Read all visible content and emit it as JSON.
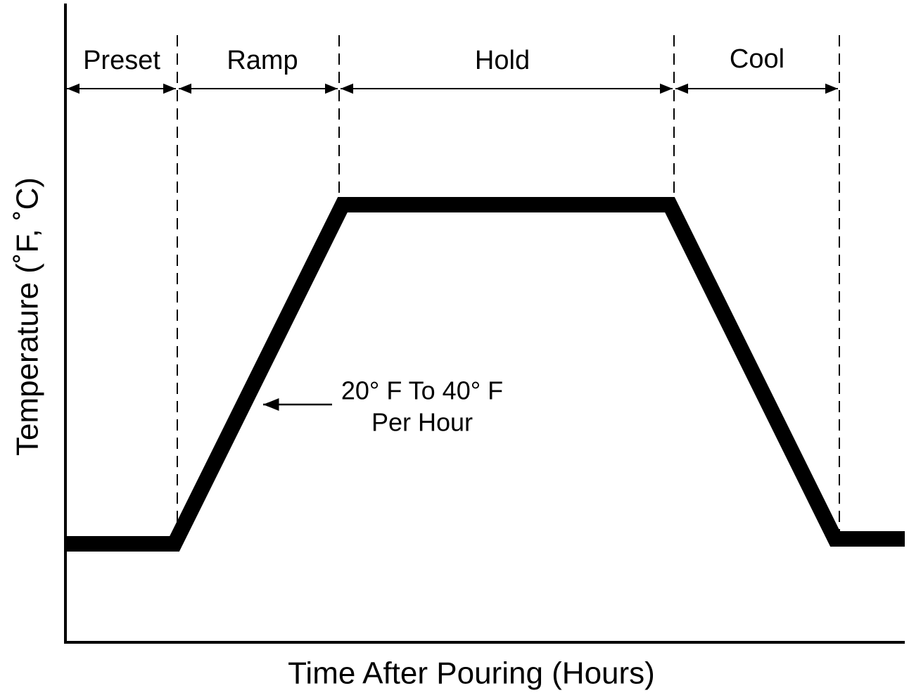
{
  "diagram": {
    "phases": [
      "Preset",
      "Ramp",
      "Hold",
      "Cool"
    ],
    "y_axis_label": "Temperature (˚F, ˚C)",
    "x_axis_label": "Time After Pouring (Hours)",
    "annotation": [
      "20° F To 40° F",
      "Per Hour"
    ]
  }
}
